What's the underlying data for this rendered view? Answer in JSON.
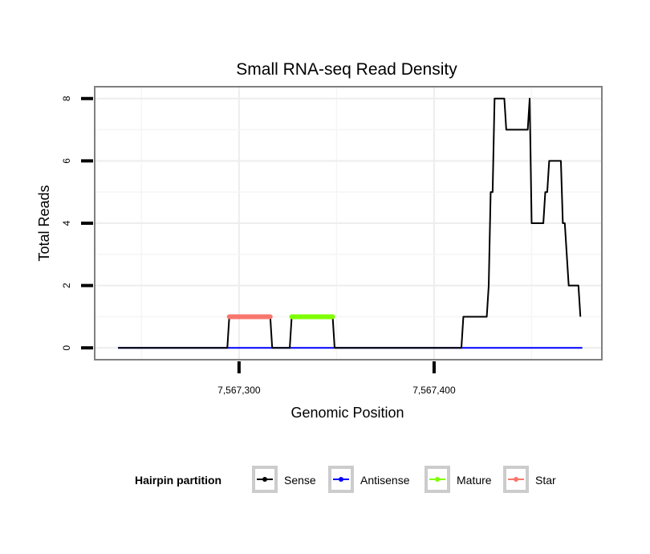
{
  "chart_data": {
    "type": "line",
    "title": "Small RNA-seq Read Density",
    "xlabel": "Genomic Position",
    "ylabel": "Total Reads",
    "xlim": [
      7567226,
      7567486
    ],
    "ylim": [
      -0.38,
      8.38
    ],
    "x_ticks": [
      7567300,
      7567400
    ],
    "x_tick_labels": [
      "7,567,300",
      "7,567,400"
    ],
    "y_ticks": [
      0,
      2,
      4,
      6,
      8
    ],
    "y_tick_labels": [
      "0",
      "2",
      "4",
      "6",
      "8"
    ],
    "grid": true,
    "legend": {
      "title": "Hairpin partition",
      "position": "bottom",
      "entries": [
        "Sense",
        "Antisense",
        "Mature",
        "Star"
      ]
    },
    "series": [
      {
        "name": "Sense",
        "color": "#000000",
        "points": [
          [
            7567238,
            0
          ],
          [
            7567294,
            0
          ],
          [
            7567295,
            1
          ],
          [
            7567316,
            1
          ],
          [
            7567317,
            0
          ],
          [
            7567326,
            0
          ],
          [
            7567327,
            1
          ],
          [
            7567337,
            1
          ],
          [
            7567348,
            1
          ],
          [
            7567349,
            0
          ],
          [
            7567414,
            0
          ],
          [
            7567415,
            1
          ],
          [
            7567427,
            1
          ],
          [
            7567428,
            2
          ],
          [
            7567429,
            5
          ],
          [
            7567430,
            5
          ],
          [
            7567431,
            8
          ],
          [
            7567436,
            8
          ],
          [
            7567437,
            7
          ],
          [
            7567448,
            7
          ],
          [
            7567449,
            8
          ],
          [
            7567450,
            4
          ],
          [
            7567456,
            4
          ],
          [
            7567457,
            5
          ],
          [
            7567458,
            5
          ],
          [
            7567459,
            6
          ],
          [
            7567465,
            6
          ],
          [
            7567466,
            4
          ],
          [
            7567467,
            4
          ],
          [
            7567468,
            3
          ],
          [
            7567469,
            2
          ],
          [
            7567474,
            2
          ],
          [
            7567475,
            1
          ]
        ]
      },
      {
        "name": "Antisense",
        "color": "#0000ff",
        "points": [
          [
            7567238,
            0
          ],
          [
            7567476,
            0
          ]
        ]
      },
      {
        "name": "Mature",
        "color": "#7fff00",
        "points": [
          [
            7567327,
            1
          ],
          [
            7567348,
            1
          ]
        ]
      },
      {
        "name": "Star",
        "color": "#f8766d",
        "points": [
          [
            7567295,
            1
          ],
          [
            7567316,
            1
          ]
        ]
      }
    ]
  }
}
